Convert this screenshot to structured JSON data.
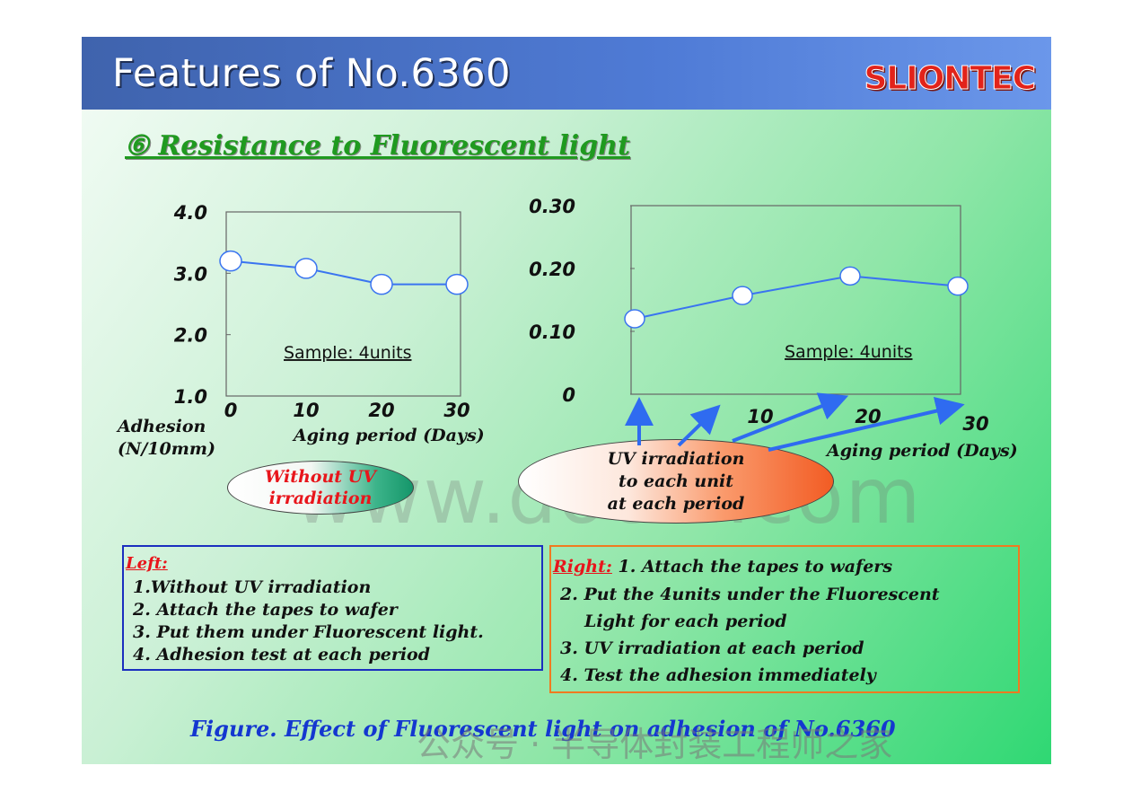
{
  "header": {
    "title": "Features of No.6360",
    "logo": "SLIONTEC"
  },
  "subtitle": "⑥ Resistance to Fluorescent light",
  "chart_data": [
    {
      "type": "line",
      "x": [
        0,
        10,
        20,
        30
      ],
      "series": [
        {
          "values": [
            3.2,
            3.08,
            2.82,
            2.82
          ]
        }
      ],
      "xlim": [
        0,
        30
      ],
      "ylim": [
        1.0,
        4.0
      ],
      "yticks": [
        "1.0",
        "2.0",
        "3.0",
        "4.0"
      ],
      "xticks": [
        "0",
        "10",
        "20",
        "30"
      ],
      "ylabel_lines": [
        "Adhesion",
        "(N/10mm)"
      ],
      "xlabel": "Aging period (Days)",
      "annotation": "Sample: 4units",
      "grid": false,
      "series_color": "#3a74f0"
    },
    {
      "type": "line",
      "x": [
        0,
        10,
        20,
        30
      ],
      "series": [
        {
          "values": [
            0.12,
            0.157,
            0.188,
            0.172
          ]
        }
      ],
      "xlim": [
        0,
        30
      ],
      "ylim": [
        0,
        0.3
      ],
      "yticks": [
        "0",
        "0.10",
        "0.20",
        "0.30"
      ],
      "xticks": [
        "10",
        "20",
        "30"
      ],
      "xlabel": "Aging period (Days)",
      "annotation": "Sample: 4units",
      "grid": false,
      "series_color": "#3a74f0"
    }
  ],
  "callout_left": {
    "line1": "Without UV",
    "line2": "irradiation"
  },
  "callout_right": {
    "line1": "UV irradiation",
    "line2": "to each unit",
    "line3": "at each period"
  },
  "watermark": "www.docin.com",
  "left_box": {
    "heading": "Left:",
    "items": [
      "1.Without UV irradiation",
      "2. Attach the tapes to wafer",
      "3. Put them under Fluorescent light.",
      "4. Adhesion test at each period"
    ]
  },
  "right_box": {
    "heading": "Right:",
    "item1": "1. Attach the tapes to wafers",
    "item2a": "2. Put the 4units under the Fluorescent",
    "item2b": "Light for each period",
    "item3": "3. UV irradiation at each period",
    "item4": "4. Test the adhesion immediately"
  },
  "caption": "Figure.  Effect of Fluorescent light on adhesion of No.6360",
  "footer_watermark": "公众号 · 半导体封装工程师之家",
  "colors": {
    "header": "#3f63ad",
    "logo": "#e2231a",
    "subtitle": "#1f9a1f",
    "caption": "#1437d0",
    "line": "#3a74f0",
    "arrow": "#2f6bf0"
  }
}
